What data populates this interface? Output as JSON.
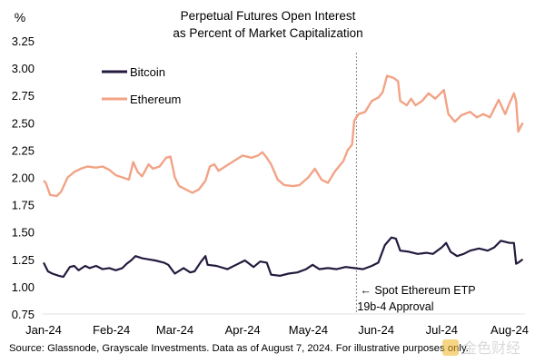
{
  "chart_data": {
    "type": "line",
    "title": "Perpetual Futures Open Interest",
    "subtitle": "as Percent of Market Capitalization",
    "ylabel": "%",
    "xlabel": "",
    "ylim": [
      0.75,
      3.25
    ],
    "yticks": [
      "3.25",
      "3.00",
      "2.75",
      "2.50",
      "2.25",
      "2.00",
      "1.75",
      "1.50",
      "1.25",
      "1.00",
      "0.75"
    ],
    "xticks": [
      {
        "label": "Jan-24",
        "date": "2024-01-01"
      },
      {
        "label": "Feb-24",
        "date": "2024-02-01"
      },
      {
        "label": "Mar-24",
        "date": "2024-03-01"
      },
      {
        "label": "Apr-24",
        "date": "2024-04-01"
      },
      {
        "label": "May-24",
        "date": "2024-05-01"
      },
      {
        "label": "Jun-24",
        "date": "2024-06-01"
      },
      {
        "label": "Jul-24",
        "date": "2024-07-01"
      },
      {
        "label": "Aug-24",
        "date": "2024-08-01"
      }
    ],
    "grid": false,
    "legend_placement": "top-left",
    "series": [
      {
        "name": "Bitcoin",
        "color": "#241a3e",
        "points": [
          [
            "2024-01-01",
            1.22
          ],
          [
            "2024-01-03",
            1.14
          ],
          [
            "2024-01-05",
            1.12
          ],
          [
            "2024-01-08",
            1.1
          ],
          [
            "2024-01-10",
            1.09
          ],
          [
            "2024-01-13",
            1.18
          ],
          [
            "2024-01-15",
            1.19
          ],
          [
            "2024-01-17",
            1.15
          ],
          [
            "2024-01-20",
            1.19
          ],
          [
            "2024-01-22",
            1.17
          ],
          [
            "2024-01-25",
            1.19
          ],
          [
            "2024-01-28",
            1.16
          ],
          [
            "2024-01-31",
            1.17
          ],
          [
            "2024-02-03",
            1.15
          ],
          [
            "2024-02-06",
            1.17
          ],
          [
            "2024-02-08",
            1.21
          ],
          [
            "2024-02-10",
            1.24
          ],
          [
            "2024-02-12",
            1.28
          ],
          [
            "2024-02-15",
            1.26
          ],
          [
            "2024-02-18",
            1.25
          ],
          [
            "2024-02-21",
            1.24
          ],
          [
            "2024-02-25",
            1.22
          ],
          [
            "2024-02-27",
            1.2
          ],
          [
            "2024-03-01",
            1.12
          ],
          [
            "2024-03-05",
            1.17
          ],
          [
            "2024-03-08",
            1.13
          ],
          [
            "2024-03-10",
            1.14
          ],
          [
            "2024-03-13",
            1.23
          ],
          [
            "2024-03-15",
            1.28
          ],
          [
            "2024-03-16",
            1.2
          ],
          [
            "2024-03-20",
            1.19
          ],
          [
            "2024-03-25",
            1.16
          ],
          [
            "2024-03-29",
            1.2
          ],
          [
            "2024-04-02",
            1.24
          ],
          [
            "2024-04-06",
            1.18
          ],
          [
            "2024-04-09",
            1.23
          ],
          [
            "2024-04-12",
            1.22
          ],
          [
            "2024-04-14",
            1.11
          ],
          [
            "2024-04-18",
            1.1
          ],
          [
            "2024-04-22",
            1.12
          ],
          [
            "2024-04-26",
            1.13
          ],
          [
            "2024-04-30",
            1.16
          ],
          [
            "2024-05-03",
            1.2
          ],
          [
            "2024-05-06",
            1.16
          ],
          [
            "2024-05-10",
            1.17
          ],
          [
            "2024-05-14",
            1.16
          ],
          [
            "2024-05-18",
            1.18
          ],
          [
            "2024-05-22",
            1.17
          ],
          [
            "2024-05-26",
            1.16
          ],
          [
            "2024-05-30",
            1.19
          ],
          [
            "2024-06-02",
            1.22
          ],
          [
            "2024-06-05",
            1.38
          ],
          [
            "2024-06-08",
            1.45
          ],
          [
            "2024-06-10",
            1.44
          ],
          [
            "2024-06-12",
            1.33
          ],
          [
            "2024-06-16",
            1.32
          ],
          [
            "2024-06-20",
            1.3
          ],
          [
            "2024-06-24",
            1.31
          ],
          [
            "2024-06-27",
            1.3
          ],
          [
            "2024-07-01",
            1.36
          ],
          [
            "2024-07-03",
            1.4
          ],
          [
            "2024-07-05",
            1.32
          ],
          [
            "2024-07-08",
            1.28
          ],
          [
            "2024-07-11",
            1.3
          ],
          [
            "2024-07-14",
            1.33
          ],
          [
            "2024-07-18",
            1.35
          ],
          [
            "2024-07-22",
            1.33
          ],
          [
            "2024-07-25",
            1.36
          ],
          [
            "2024-07-28",
            1.42
          ],
          [
            "2024-08-01",
            1.4
          ],
          [
            "2024-08-03",
            1.4
          ],
          [
            "2024-08-04",
            1.21
          ],
          [
            "2024-08-05",
            1.22
          ],
          [
            "2024-08-07",
            1.25
          ]
        ]
      },
      {
        "name": "Ethereum",
        "color": "#f2a386",
        "points": [
          [
            "2024-01-01",
            1.97
          ],
          [
            "2024-01-02",
            1.95
          ],
          [
            "2024-01-04",
            1.84
          ],
          [
            "2024-01-07",
            1.83
          ],
          [
            "2024-01-09",
            1.87
          ],
          [
            "2024-01-12",
            2.0
          ],
          [
            "2024-01-15",
            2.05
          ],
          [
            "2024-01-18",
            2.08
          ],
          [
            "2024-01-21",
            2.1
          ],
          [
            "2024-01-25",
            2.09
          ],
          [
            "2024-01-28",
            2.1
          ],
          [
            "2024-01-31",
            2.07
          ],
          [
            "2024-02-03",
            2.02
          ],
          [
            "2024-02-06",
            2.0
          ],
          [
            "2024-02-09",
            1.98
          ],
          [
            "2024-02-11",
            2.14
          ],
          [
            "2024-02-13",
            2.05
          ],
          [
            "2024-02-15",
            2.01
          ],
          [
            "2024-02-18",
            2.12
          ],
          [
            "2024-02-20",
            2.08
          ],
          [
            "2024-02-23",
            2.1
          ],
          [
            "2024-02-26",
            2.18
          ],
          [
            "2024-02-28",
            2.19
          ],
          [
            "2024-03-01",
            2.0
          ],
          [
            "2024-03-03",
            1.92
          ],
          [
            "2024-03-06",
            1.89
          ],
          [
            "2024-03-09",
            1.86
          ],
          [
            "2024-03-12",
            1.89
          ],
          [
            "2024-03-15",
            1.97
          ],
          [
            "2024-03-17",
            2.1
          ],
          [
            "2024-03-19",
            2.12
          ],
          [
            "2024-03-21",
            2.06
          ],
          [
            "2024-03-24",
            2.1
          ],
          [
            "2024-03-28",
            2.15
          ],
          [
            "2024-04-01",
            2.2
          ],
          [
            "2024-04-05",
            2.18
          ],
          [
            "2024-04-08",
            2.2
          ],
          [
            "2024-04-10",
            2.23
          ],
          [
            "2024-04-12",
            2.18
          ],
          [
            "2024-04-14",
            2.12
          ],
          [
            "2024-04-17",
            1.98
          ],
          [
            "2024-04-20",
            1.93
          ],
          [
            "2024-04-24",
            1.92
          ],
          [
            "2024-04-27",
            1.93
          ],
          [
            "2024-05-01",
            2.0
          ],
          [
            "2024-05-04",
            2.08
          ],
          [
            "2024-05-07",
            1.98
          ],
          [
            "2024-05-10",
            1.95
          ],
          [
            "2024-05-13",
            2.05
          ],
          [
            "2024-05-15",
            2.1
          ],
          [
            "2024-05-17",
            2.15
          ],
          [
            "2024-05-19",
            2.25
          ],
          [
            "2024-05-21",
            2.3
          ],
          [
            "2024-05-22",
            2.52
          ],
          [
            "2024-05-24",
            2.58
          ],
          [
            "2024-05-27",
            2.6
          ],
          [
            "2024-05-30",
            2.7
          ],
          [
            "2024-06-02",
            2.73
          ],
          [
            "2024-06-04",
            2.78
          ],
          [
            "2024-06-06",
            2.93
          ],
          [
            "2024-06-09",
            2.91
          ],
          [
            "2024-06-11",
            2.88
          ],
          [
            "2024-06-12",
            2.7
          ],
          [
            "2024-06-15",
            2.66
          ],
          [
            "2024-06-17",
            2.72
          ],
          [
            "2024-06-19",
            2.66
          ],
          [
            "2024-06-22",
            2.7
          ],
          [
            "2024-06-25",
            2.77
          ],
          [
            "2024-06-28",
            2.72
          ],
          [
            "2024-07-02",
            2.8
          ],
          [
            "2024-07-04",
            2.58
          ],
          [
            "2024-07-07",
            2.51
          ],
          [
            "2024-07-10",
            2.57
          ],
          [
            "2024-07-14",
            2.6
          ],
          [
            "2024-07-17",
            2.55
          ],
          [
            "2024-07-20",
            2.58
          ],
          [
            "2024-07-23",
            2.55
          ],
          [
            "2024-07-27",
            2.71
          ],
          [
            "2024-07-30",
            2.58
          ],
          [
            "2024-08-01",
            2.68
          ],
          [
            "2024-08-03",
            2.77
          ],
          [
            "2024-08-04",
            2.7
          ],
          [
            "2024-08-05",
            2.42
          ],
          [
            "2024-08-07",
            2.5
          ]
        ]
      }
    ],
    "annotation": {
      "date": "2024-05-23",
      "line1": "← Spot Ethereum ETP",
      "line2": "19b-4 Approval"
    }
  },
  "footer": {
    "source": "Source: Glassnode, Grayscale Investments. Data as of August 7, 2024. For illustrative purposes only."
  },
  "watermark": "金色财经"
}
